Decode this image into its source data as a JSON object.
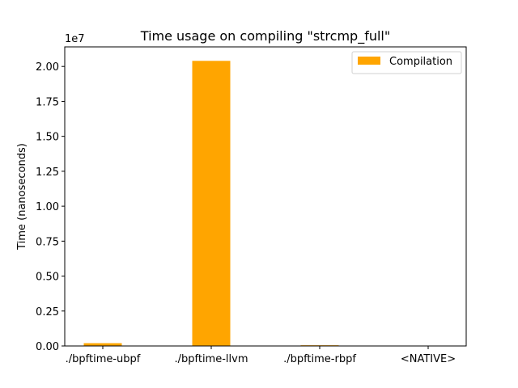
{
  "chart_data": {
    "type": "bar",
    "title": "Time usage on compiling \"strcmp_full\"",
    "xlabel": "",
    "ylabel": "Time (nanoseconds)",
    "categories": [
      "./bpftime-ubpf",
      "./bpftime-llvm",
      "./bpftime-rbpf",
      "<NATIVE>"
    ],
    "series": [
      {
        "name": "Compilation",
        "values": [
          200000,
          20400000,
          50000,
          0
        ],
        "color": "#ffa500"
      }
    ],
    "ylim": [
      0,
      21400000
    ],
    "yticks": [
      0,
      2500000,
      5000000,
      7500000,
      10000000,
      12500000,
      15000000,
      17500000,
      20000000
    ],
    "ytick_labels": [
      "0.00",
      "0.25",
      "0.50",
      "0.75",
      "1.00",
      "1.25",
      "1.50",
      "1.75",
      "2.00"
    ],
    "y_offset_label": "1e7",
    "grid": false,
    "legend_position": "top-right"
  }
}
